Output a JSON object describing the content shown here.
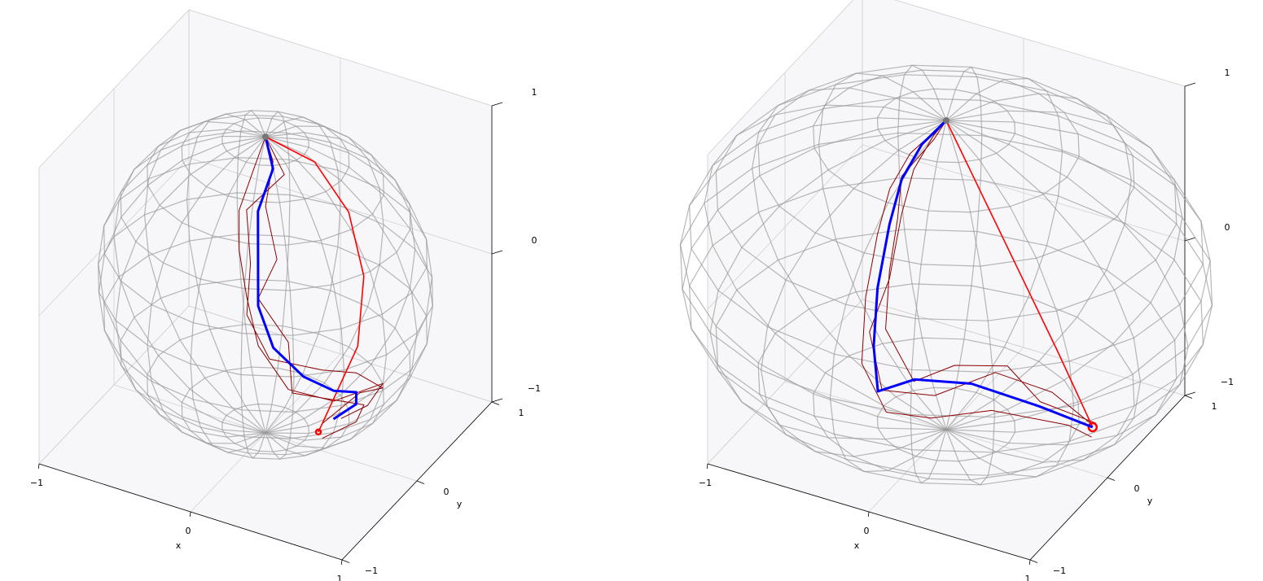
{
  "chart_data": [
    {
      "type": "line3d",
      "xlabel": "x",
      "ylabel": "y",
      "xlim": [
        -1,
        1
      ],
      "ylim": [
        -1,
        1
      ],
      "zlim": [
        -1,
        1
      ],
      "xticks": [
        {
          "value": -1,
          "label": "−1"
        },
        0,
        1
      ],
      "yticks": [
        {
          "value": -1,
          "label": "−1"
        },
        0,
        1
      ],
      "zticks": [
        {
          "value": -1,
          "label": "−1"
        },
        0,
        1
      ],
      "series": [
        {
          "color": "#8b0000",
          "x": [
            0,
            0.1,
            -0.1,
            0.0,
            0.05,
            0.2,
            0.45,
            0.6,
            0.7,
            0.5,
            0.3
          ],
          "y": [
            0,
            0.05,
            -0.05,
            -0.2,
            -0.35,
            -0.35,
            -0.15,
            0.0,
            0.15,
            0.25,
            0.15
          ],
          "z": [
            1,
            0.75,
            0.5,
            0.25,
            0.0,
            -0.25,
            -0.35,
            -0.4,
            -0.55,
            -0.7,
            -0.92
          ]
        },
        {
          "color": "#8b0000",
          "x": [
            0,
            -0.05,
            -0.1,
            -0.05,
            0.0,
            0.15,
            0.3,
            0.55,
            0.75,
            0.6,
            0.4
          ],
          "y": [
            0,
            -0.05,
            -0.15,
            -0.25,
            -0.25,
            -0.4,
            -0.3,
            -0.2,
            0.05,
            0.15,
            0.2
          ],
          "z": [
            1,
            0.8,
            0.55,
            0.35,
            0.05,
            -0.15,
            -0.45,
            -0.5,
            -0.45,
            -0.7,
            -0.88
          ]
        },
        {
          "color": "#8b0000",
          "x": [
            0,
            0.05,
            0.05,
            0.15,
            0.1,
            0.25,
            0.3,
            0.45,
            0.65,
            0.55,
            0.35
          ],
          "y": [
            0,
            0,
            -0.1,
            -0.15,
            -0.3,
            -0.2,
            -0.25,
            -0.05,
            0.0,
            0.1,
            0.05
          ],
          "z": [
            1,
            0.85,
            0.6,
            0.3,
            0.1,
            -0.2,
            -0.5,
            -0.6,
            -0.6,
            -0.8,
            -0.95
          ]
        },
        {
          "color": "#ff0000",
          "x": [
            0,
            0.3,
            0.5,
            0.6,
            0.55,
            0.3
          ],
          "y": [
            0,
            0.05,
            0.1,
            0.1,
            0.12,
            0.1
          ],
          "z": [
            1,
            0.9,
            0.6,
            0.2,
            -0.3,
            -0.95
          ]
        },
        {
          "color": "#0000ff",
          "x": [
            0,
            0.05,
            0.0,
            0.05,
            0.1,
            0.2,
            0.35,
            0.5,
            0.55,
            0.5,
            0.35
          ],
          "y": [
            0,
            0.0,
            -0.1,
            -0.2,
            -0.3,
            -0.3,
            -0.2,
            -0.1,
            0.1,
            0.2,
            0.2
          ],
          "z": [
            1,
            0.8,
            0.55,
            0.3,
            0.05,
            -0.2,
            -0.4,
            -0.5,
            -0.6,
            -0.75,
            -0.9
          ]
        }
      ]
    },
    {
      "type": "line3d",
      "xlabel": "x",
      "ylabel": "y",
      "xlim": [
        -1,
        1
      ],
      "ylim": [
        -1,
        1
      ],
      "zlim": [
        -1,
        1
      ],
      "xticks": [
        {
          "value": -1,
          "label": "−1"
        },
        0,
        1
      ],
      "yticks": [
        {
          "value": -1,
          "label": "−1"
        },
        0,
        1
      ],
      "zticks": [
        {
          "value": -1,
          "label": "−1"
        },
        0,
        1
      ],
      "series": [
        {
          "color": "#8b0000",
          "x": [
            0,
            -0.1,
            -0.25,
            -0.35,
            -0.4,
            -0.5,
            -0.35,
            0.0,
            0.4,
            0.8,
            1.0
          ],
          "y": [
            0,
            0.05,
            0.1,
            0.15,
            0.1,
            0.05,
            -0.1,
            -0.15,
            -0.2,
            -0.3,
            -0.2
          ],
          "z": [
            1,
            0.85,
            0.55,
            0.2,
            -0.2,
            -0.55,
            -0.8,
            -0.7,
            -0.4,
            -0.35,
            -0.55
          ]
        },
        {
          "color": "#8b0000",
          "x": [
            0,
            -0.2,
            -0.35,
            -0.45,
            -0.5,
            -0.5,
            -0.3,
            0.05,
            0.45,
            0.85,
            0.95
          ],
          "y": [
            0,
            -0.05,
            0,
            0.05,
            0,
            -0.05,
            -0.15,
            -0.3,
            -0.35,
            -0.2,
            -0.1
          ],
          "z": [
            1,
            0.75,
            0.45,
            0.1,
            -0.3,
            -0.7,
            -0.9,
            -0.75,
            -0.55,
            -0.6,
            -0.7
          ]
        },
        {
          "color": "#8b0000",
          "x": [
            0,
            -0.1,
            -0.3,
            -0.35,
            -0.4,
            -0.4,
            -0.2,
            0.1,
            0.5,
            0.75,
            1.05
          ],
          "y": [
            0,
            0.05,
            0.05,
            0.1,
            0.1,
            0.05,
            0,
            -0.1,
            -0.25,
            -0.35,
            -0.25
          ],
          "z": [
            1,
            0.82,
            0.52,
            0.2,
            -0.15,
            -0.5,
            -0.75,
            -0.5,
            -0.3,
            -0.4,
            -0.5
          ]
        },
        {
          "color": "#ff0000",
          "x": [
            0,
            0.25,
            0.5,
            0.75,
            0.98
          ],
          "y": [
            0,
            -0.04,
            -0.08,
            -0.12,
            -0.15
          ],
          "z": [
            1,
            0.6,
            0.2,
            -0.2,
            -0.6
          ]
        },
        {
          "color": "#0000ff",
          "x": [
            0,
            -0.15,
            -0.3,
            -0.4,
            -0.45,
            -0.45,
            -0.4,
            -0.1,
            0.3,
            0.7,
            0.98
          ],
          "y": [
            0,
            0,
            0.05,
            0.1,
            0.05,
            0,
            -0.05,
            -0.2,
            -0.3,
            -0.25,
            -0.15
          ],
          "z": [
            1,
            0.8,
            0.5,
            0.15,
            -0.25,
            -0.6,
            -0.85,
            -0.6,
            -0.45,
            -0.5,
            -0.6
          ]
        }
      ]
    }
  ]
}
